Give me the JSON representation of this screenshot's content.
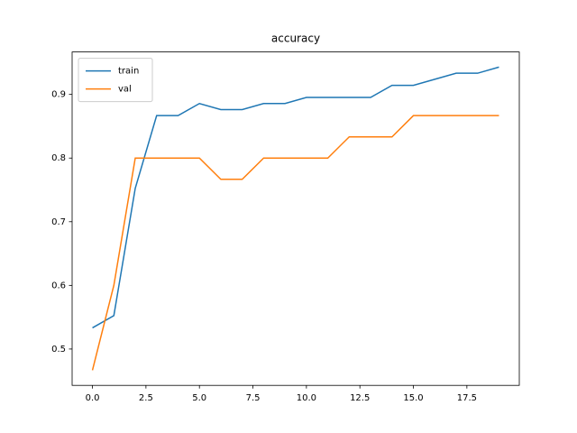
{
  "chart_data": {
    "type": "line",
    "title": "accuracy",
    "x": [
      0,
      1,
      2,
      3,
      4,
      5,
      6,
      7,
      8,
      9,
      10,
      11,
      12,
      13,
      14,
      15,
      16,
      17,
      18,
      19
    ],
    "series": [
      {
        "name": "train",
        "color": "#1f77b4",
        "values": [
          0.5333,
          0.5524,
          0.7524,
          0.8667,
          0.8667,
          0.8857,
          0.8762,
          0.8762,
          0.8857,
          0.8857,
          0.8952,
          0.8952,
          0.8952,
          0.8952,
          0.9143,
          0.9143,
          0.9238,
          0.9333,
          0.9333,
          0.9429
        ]
      },
      {
        "name": "val",
        "color": "#ff7f0e",
        "values": [
          0.4667,
          0.6,
          0.8,
          0.8,
          0.8,
          0.8,
          0.7667,
          0.7667,
          0.8,
          0.8,
          0.8,
          0.8,
          0.8333,
          0.8333,
          0.8333,
          0.8667,
          0.8667,
          0.8667,
          0.8667,
          0.8667
        ]
      }
    ],
    "xlim": [
      -0.95,
      19.95
    ],
    "xticks": [
      {
        "value": 0,
        "label": "0.0"
      },
      {
        "value": 2.5,
        "label": "2.5"
      },
      {
        "value": 5,
        "label": "5.0"
      },
      {
        "value": 7.5,
        "label": "7.5"
      },
      {
        "value": 10,
        "label": "10.0"
      },
      {
        "value": 12.5,
        "label": "12.5"
      },
      {
        "value": 15,
        "label": "15.0"
      },
      {
        "value": 17.5,
        "label": "17.5"
      }
    ],
    "ylim": [
      0.4429,
      0.9667
    ],
    "yticks": [
      0.5,
      0.6,
      0.7,
      0.8,
      0.9
    ],
    "legend": "upper left"
  }
}
